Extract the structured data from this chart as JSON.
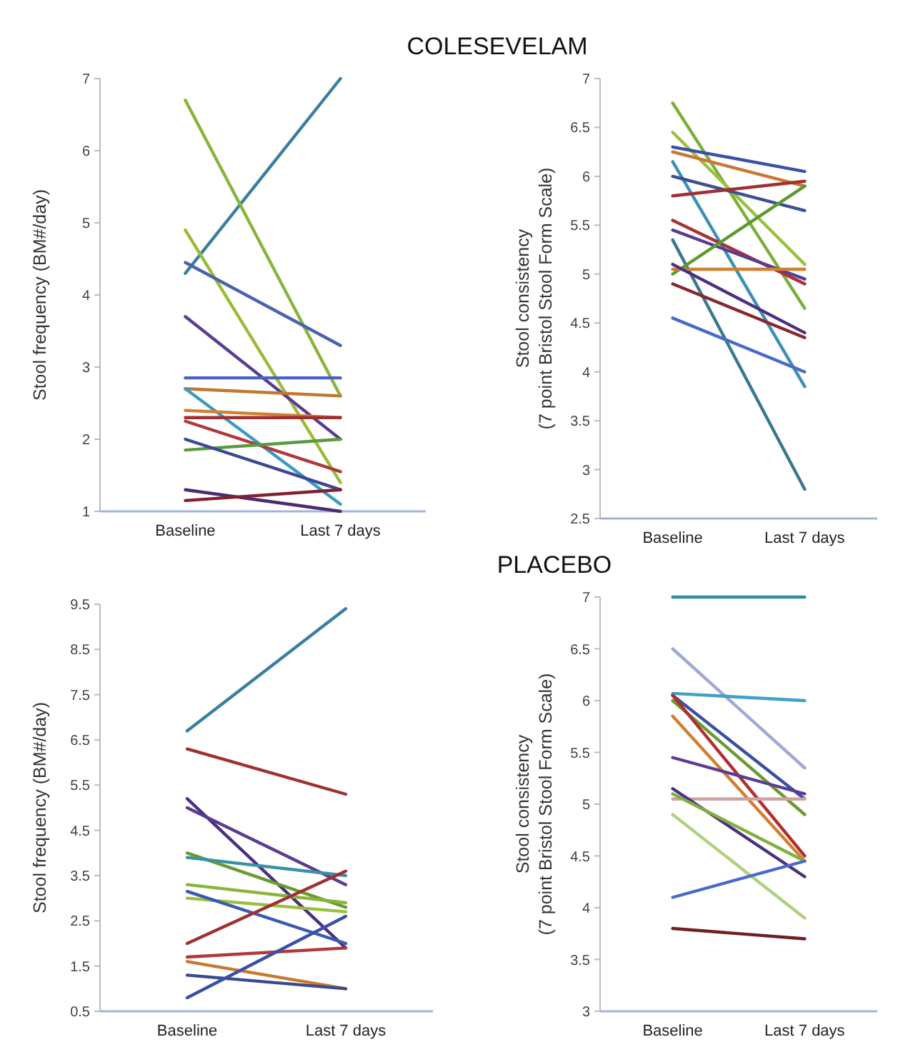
{
  "chart_data": [
    {
      "type": "line",
      "title": "COLESEVELAM",
      "categories": [
        "Baseline",
        "Last 7 days"
      ],
      "ylabel": "Stool frequency (BM#/day)",
      "ylim": [
        1,
        7
      ],
      "yticks": [
        1,
        2,
        3,
        4,
        5,
        6,
        7
      ],
      "series": [
        {
          "color": "#3a7ea0",
          "values": [
            4.3,
            7.0
          ]
        },
        {
          "color": "#8ab43c",
          "values": [
            6.7,
            2.6
          ]
        },
        {
          "color": "#9abb3a",
          "values": [
            4.9,
            1.4
          ]
        },
        {
          "color": "#4a62b0",
          "values": [
            4.45,
            3.3
          ]
        },
        {
          "color": "#5a3c90",
          "values": [
            3.7,
            2.0
          ]
        },
        {
          "color": "#4a62c0",
          "values": [
            2.85,
            2.85
          ]
        },
        {
          "color": "#c07830",
          "values": [
            2.7,
            2.6
          ]
        },
        {
          "color": "#3a9ac0",
          "values": [
            2.7,
            1.1
          ]
        },
        {
          "color": "#d08030",
          "values": [
            2.4,
            2.3
          ]
        },
        {
          "color": "#a03030",
          "values": [
            2.3,
            2.3
          ]
        },
        {
          "color": "#b03838",
          "values": [
            2.25,
            1.55
          ]
        },
        {
          "color": "#5a9a40",
          "values": [
            1.85,
            2.0
          ]
        },
        {
          "color": "#3a4a90",
          "values": [
            2.0,
            1.3
          ]
        },
        {
          "color": "#4a2a70",
          "values": [
            1.3,
            1.0
          ]
        },
        {
          "color": "#802030",
          "values": [
            1.15,
            1.3
          ]
        }
      ]
    },
    {
      "type": "line",
      "categories": [
        "Baseline",
        "Last 7 days"
      ],
      "ylabel": "Stool consistency\n(7 point Bristol Stool Form Scale)",
      "ylim": [
        2.5,
        7
      ],
      "yticks": [
        2.5,
        3,
        3.5,
        4,
        4.5,
        5,
        5.5,
        6,
        6.5,
        7
      ],
      "series": [
        {
          "color": "#7ab03a",
          "values": [
            6.75,
            4.65
          ]
        },
        {
          "color": "#9ac040",
          "values": [
            6.45,
            5.1
          ]
        },
        {
          "color": "#3a50a8",
          "values": [
            6.3,
            6.05
          ]
        },
        {
          "color": "#c87830",
          "values": [
            6.25,
            5.9
          ]
        },
        {
          "color": "#3a90b8",
          "values": [
            6.15,
            3.85
          ]
        },
        {
          "color": "#3a5090",
          "values": [
            6.0,
            5.65
          ]
        },
        {
          "color": "#a03030",
          "values": [
            5.8,
            5.95
          ]
        },
        {
          "color": "#a83038",
          "values": [
            5.55,
            4.9
          ]
        },
        {
          "color": "#5a3c90",
          "values": [
            5.45,
            4.95
          ]
        },
        {
          "color": "#3a7890",
          "values": [
            5.35,
            2.8
          ]
        },
        {
          "color": "#5a9a30",
          "values": [
            5.0,
            5.9
          ]
        },
        {
          "color": "#d08030",
          "values": [
            5.05,
            5.05
          ]
        },
        {
          "color": "#4a3080",
          "values": [
            5.1,
            4.4
          ]
        },
        {
          "color": "#882830",
          "values": [
            4.9,
            4.35
          ]
        },
        {
          "color": "#4a6ac8",
          "values": [
            4.55,
            4.0
          ]
        }
      ]
    },
    {
      "type": "line",
      "categories": [
        "Baseline",
        "Last 7 days"
      ],
      "ylabel": "Stool frequency (BM#/day)",
      "ylim": [
        0.5,
        9.5
      ],
      "yticks": [
        0.5,
        1.5,
        2.5,
        3.5,
        4.5,
        5.5,
        6.5,
        7.5,
        8.5,
        9.5
      ],
      "series": [
        {
          "color": "#3a7ea0",
          "values": [
            6.7,
            9.4
          ]
        },
        {
          "color": "#a03030",
          "values": [
            6.3,
            5.3
          ]
        },
        {
          "color": "#4a3080",
          "values": [
            5.2,
            1.9
          ]
        },
        {
          "color": "#5a3c90",
          "values": [
            5.0,
            3.3
          ]
        },
        {
          "color": "#6a9a30",
          "values": [
            4.0,
            2.8
          ]
        },
        {
          "color": "#3a90a8",
          "values": [
            3.9,
            3.5
          ]
        },
        {
          "color": "#8ab43c",
          "values": [
            3.3,
            2.9
          ]
        },
        {
          "color": "#9ac040",
          "values": [
            3.0,
            2.7
          ]
        },
        {
          "color": "#3a5ab0",
          "values": [
            3.15,
            2.0
          ]
        },
        {
          "color": "#a03030",
          "values": [
            2.0,
            3.6
          ]
        },
        {
          "color": "#b03838",
          "values": [
            1.7,
            1.9
          ]
        },
        {
          "color": "#c87830",
          "values": [
            1.6,
            1.0
          ]
        },
        {
          "color": "#3a4a90",
          "values": [
            1.3,
            1.0
          ]
        },
        {
          "color": "#3a50a8",
          "values": [
            0.8,
            2.6
          ]
        }
      ]
    },
    {
      "type": "line",
      "title": "PLACEBO",
      "categories": [
        "Baseline",
        "Last 7 days"
      ],
      "ylabel": "Stool consistency\n(7 point Bristol Stool Form Scale)",
      "ylim": [
        3,
        7
      ],
      "yticks": [
        3,
        3.5,
        4,
        4.5,
        5,
        5.5,
        6,
        6.5,
        7
      ],
      "series": [
        {
          "color": "#3a8aa0",
          "values": [
            7.0,
            7.0
          ]
        },
        {
          "color": "#a0a8d8",
          "values": [
            6.5,
            5.35
          ]
        },
        {
          "color": "#40a0c8",
          "values": [
            6.07,
            6.0
          ]
        },
        {
          "color": "#3a50a0",
          "values": [
            6.05,
            5.05
          ]
        },
        {
          "color": "#6a9a30",
          "values": [
            6.0,
            4.9
          ]
        },
        {
          "color": "#b03030",
          "values": [
            6.05,
            4.5
          ]
        },
        {
          "color": "#d08030",
          "values": [
            5.85,
            4.45
          ]
        },
        {
          "color": "#5a3c90",
          "values": [
            5.45,
            5.1
          ]
        },
        {
          "color": "#d0a0a0",
          "values": [
            5.05,
            5.05
          ]
        },
        {
          "color": "#4a3080",
          "values": [
            5.15,
            4.3
          ]
        },
        {
          "color": "#80b040",
          "values": [
            5.1,
            4.45
          ]
        },
        {
          "color": "#b0d080",
          "values": [
            4.9,
            3.9
          ]
        },
        {
          "color": "#4a6ac8",
          "values": [
            4.1,
            4.45
          ]
        },
        {
          "color": "#702020",
          "values": [
            3.8,
            3.7
          ]
        }
      ]
    }
  ]
}
